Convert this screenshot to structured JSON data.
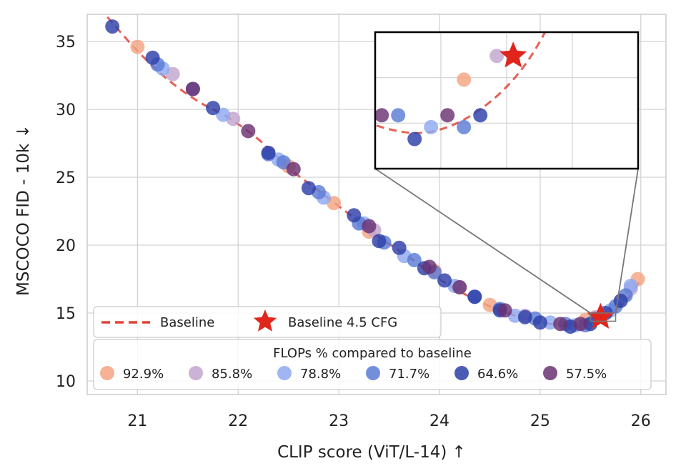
{
  "chart_data": {
    "type": "scatter",
    "title": "",
    "xlabel": "CLIP score (ViT/L-14)  ↑",
    "ylabel": "MSCOCO FID - 10k  ↓",
    "xlim": [
      20.5,
      26.25
    ],
    "ylim": [
      9,
      37
    ],
    "xticks": [
      21,
      22,
      23,
      24,
      25,
      26
    ],
    "yticks": [
      10,
      15,
      20,
      25,
      30,
      35
    ],
    "grid": true,
    "baseline": {
      "name": "Baseline",
      "color": "#e0453a",
      "x": [
        20.7,
        21.0,
        21.3,
        21.6,
        21.9,
        22.2,
        22.5,
        22.8,
        23.1,
        23.4,
        23.7,
        24.0,
        24.3,
        24.6,
        24.9,
        25.2,
        25.4,
        25.6,
        25.75,
        25.9,
        26.0
      ],
      "y": [
        36.8,
        34.3,
        32.2,
        30.6,
        29.4,
        27.8,
        25.7,
        24.0,
        22.3,
        20.6,
        19.1,
        17.5,
        16.2,
        15.2,
        14.5,
        14.1,
        14.1,
        14.5,
        15.2,
        16.3,
        17.5
      ]
    },
    "highlight": {
      "name": "Baseline 4.5 CFG",
      "x": 25.6,
      "y": 14.7,
      "color": "#e0261c",
      "marker": "star"
    },
    "legend_title": "FLOPs % compared to baseline",
    "series": [
      {
        "name": "92.9%",
        "color": "#f4a582",
        "x": [
          21.0,
          22.5,
          22.95,
          23.3,
          23.95,
          24.5,
          25.45,
          25.97
        ],
        "y": [
          34.6,
          25.8,
          23.1,
          21.0,
          18.1,
          15.6,
          14.5,
          17.5
        ]
      },
      {
        "name": "85.8%",
        "color": "#c2a5cf",
        "x": [
          21.35,
          21.95,
          23.35,
          24.2,
          24.85,
          25.55,
          25.9
        ],
        "y": [
          32.6,
          29.3,
          21.1,
          16.9,
          14.8,
          14.7,
          16.8
        ]
      },
      {
        "name": "78.8%",
        "color": "#8fa9f0",
        "x": [
          21.25,
          21.85,
          22.4,
          22.85,
          23.25,
          23.65,
          24.15,
          24.75,
          25.1,
          25.35,
          25.7,
          25.9
        ],
        "y": [
          33.0,
          29.6,
          26.3,
          23.5,
          21.6,
          19.2,
          17.0,
          14.8,
          14.3,
          14.1,
          15.2,
          17.0
        ]
      },
      {
        "name": "71.7%",
        "color": "#5b7bd6",
        "x": [
          21.2,
          21.55,
          22.3,
          22.45,
          22.8,
          23.2,
          23.45,
          23.75,
          23.95,
          24.35,
          24.6,
          24.95,
          25.25,
          25.45,
          25.75,
          25.85
        ],
        "y": [
          33.3,
          31.5,
          26.7,
          26.1,
          23.9,
          21.6,
          20.2,
          18.9,
          18.0,
          16.2,
          15.3,
          14.6,
          14.2,
          14.1,
          15.5,
          16.3
        ]
      },
      {
        "name": "64.6%",
        "color": "#2d40a8",
        "x": [
          20.75,
          21.15,
          21.75,
          22.3,
          22.7,
          23.15,
          23.4,
          23.6,
          23.85,
          24.05,
          24.35,
          24.6,
          24.85,
          25.0,
          25.3,
          25.5,
          25.65,
          25.8
        ],
        "y": [
          36.1,
          33.8,
          30.1,
          26.8,
          24.2,
          22.2,
          20.3,
          19.8,
          18.3,
          17.4,
          16.2,
          15.2,
          14.7,
          14.3,
          14.0,
          14.2,
          15.0,
          15.9
        ]
      },
      {
        "name": "57.5%",
        "color": "#6a3272",
        "x": [
          21.55,
          22.1,
          22.55,
          23.3,
          23.9,
          24.2,
          24.65,
          25.2,
          25.4
        ],
        "y": [
          31.5,
          28.4,
          25.6,
          21.4,
          18.4,
          16.9,
          15.2,
          14.2,
          14.2
        ]
      }
    ],
    "inset": {
      "xlim": [
        25.18,
        25.98
      ],
      "ylim": [
        13.75,
        14.9
      ],
      "source_box": {
        "x": [
          25.5,
          25.75
        ],
        "y": [
          14.4,
          15.0
        ]
      }
    }
  }
}
